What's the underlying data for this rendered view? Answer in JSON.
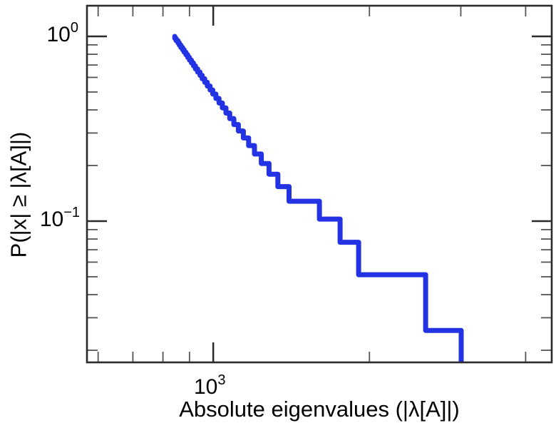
{
  "figure": {
    "background": "#ffffff",
    "text_color": "#000000"
  },
  "chart_data": {
    "type": "line",
    "subtype": "ccdf_step_loglog",
    "title": "",
    "xlabel": "Absolute eigenvalues (|λ[A]|)",
    "ylabel": "P(|x| ≥ |λ[A]|)",
    "xscale": "log",
    "yscale": "log",
    "grid": false,
    "legend_position": "none",
    "xlim": [
      571,
      4491
    ],
    "ylim": [
      0.0172,
      1.466
    ],
    "line_color": "#2333e3",
    "line_width": 7,
    "spine_color": "#2b2b2b",
    "minor_tick_color": "#555555",
    "n_points": 39,
    "x": [
      843,
      848,
      855,
      860,
      866,
      873,
      879,
      886,
      893,
      900,
      908,
      916,
      924,
      933,
      943,
      952,
      963,
      974,
      986,
      998,
      1012,
      1026,
      1041,
      1058,
      1076,
      1096,
      1118,
      1143,
      1170,
      1201,
      1238,
      1281,
      1332,
      1400,
      1602,
      1756,
      1906,
      2566,
      3005
    ],
    "y": [
      1.0,
      0.9744,
      0.9487,
      0.9231,
      0.8974,
      0.8718,
      0.8462,
      0.8205,
      0.7949,
      0.7692,
      0.7436,
      0.7179,
      0.6923,
      0.6667,
      0.641,
      0.6154,
      0.5897,
      0.5641,
      0.5385,
      0.5128,
      0.4872,
      0.4615,
      0.4359,
      0.4103,
      0.3846,
      0.359,
      0.3333,
      0.3077,
      0.2821,
      0.2564,
      0.2308,
      0.2051,
      0.1795,
      0.1538,
      0.1282,
      0.1026,
      0.0769,
      0.0513,
      0.0256
    ],
    "xticks": [
      {
        "base": "10",
        "exp": "3",
        "value": 1000
      }
    ],
    "yticks": [
      {
        "base": "10",
        "exp": "0",
        "value": 1
      },
      {
        "base": "10",
        "exp": "−1",
        "value": 0.1
      }
    ],
    "x_minor_ticks": [
      600,
      700,
      800,
      900,
      2000,
      3000,
      4000
    ],
    "y_minor_ticks": [
      0.9,
      0.8,
      0.7,
      0.6,
      0.5,
      0.4,
      0.3,
      0.2,
      0.09,
      0.08,
      0.07,
      0.06,
      0.05,
      0.04,
      0.03,
      0.02
    ]
  }
}
